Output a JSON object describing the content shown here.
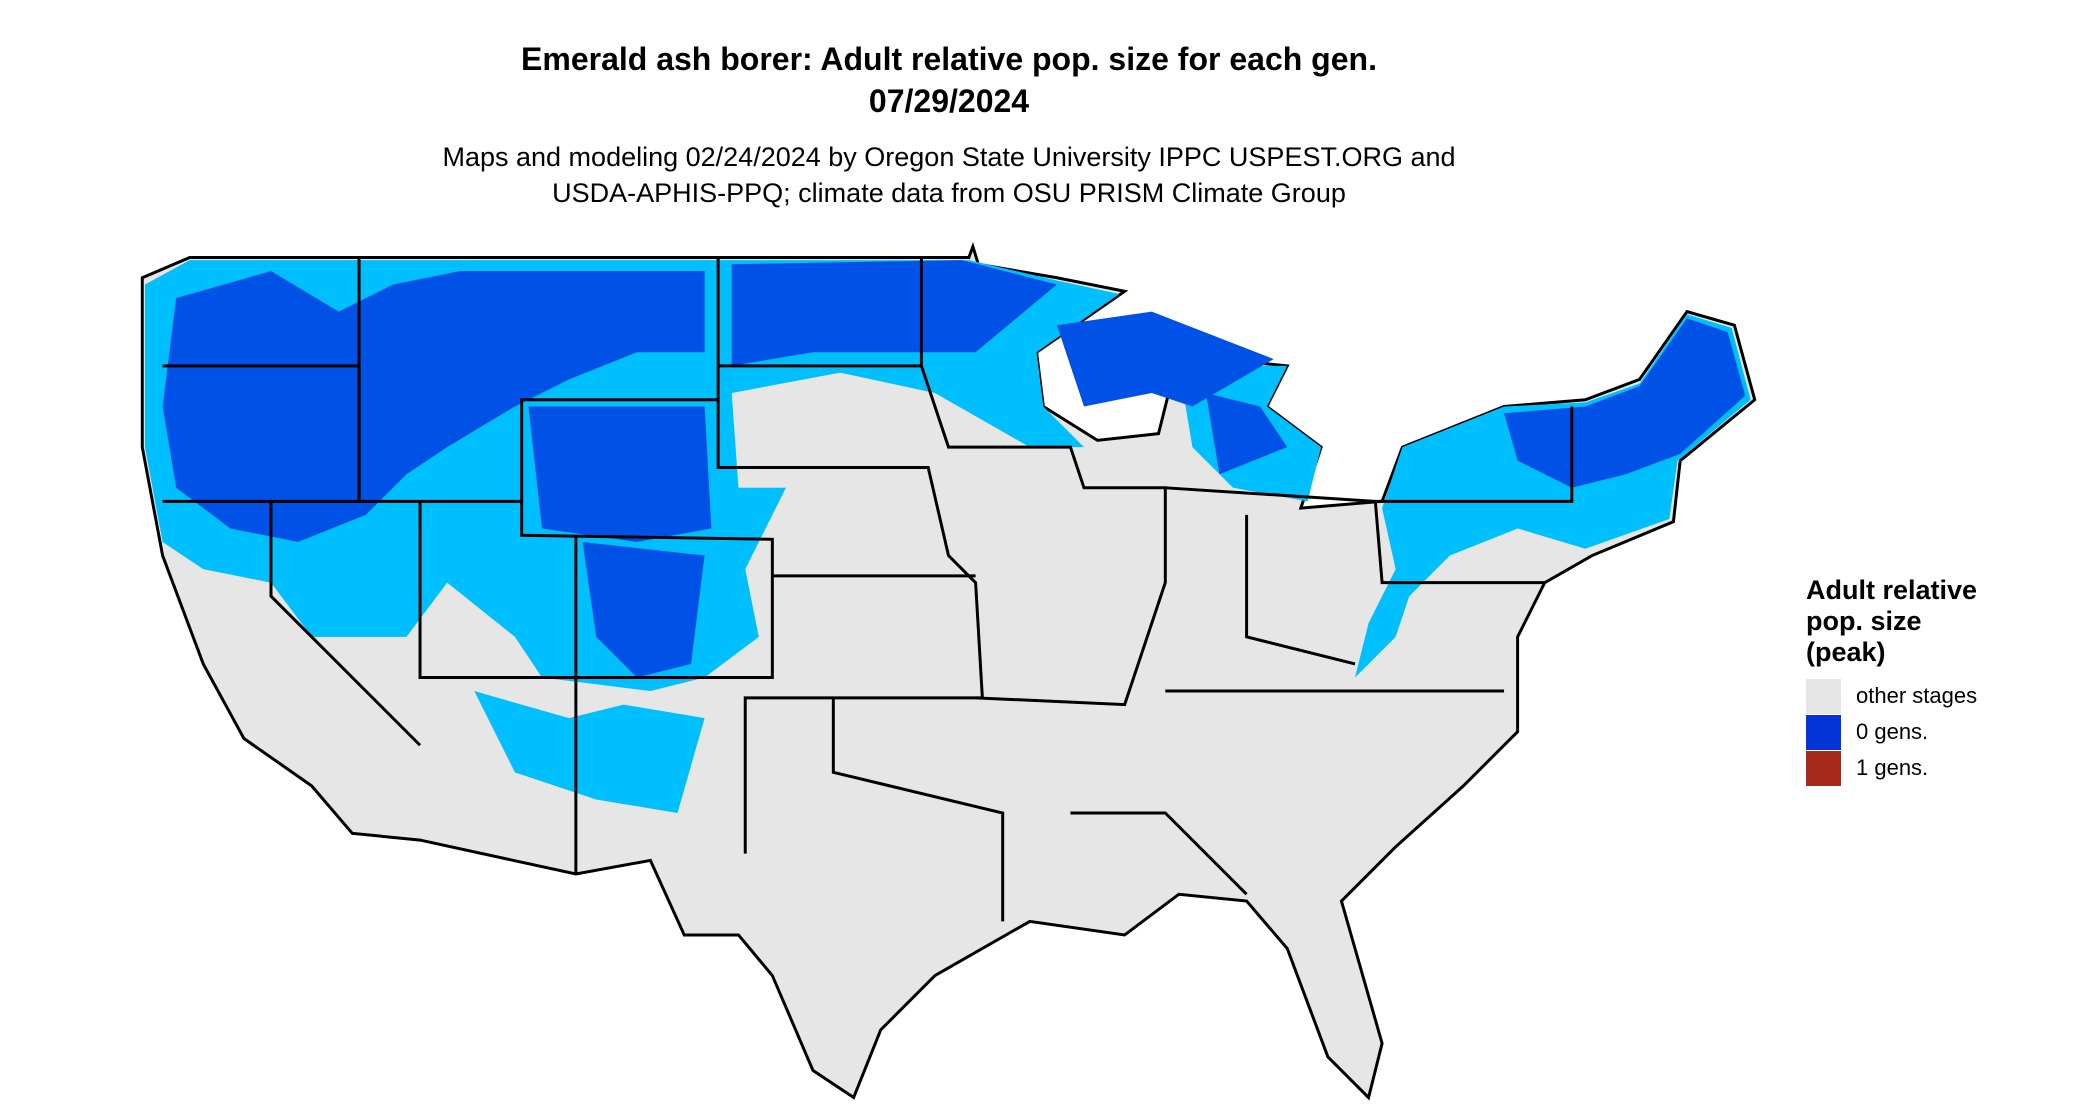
{
  "header": {
    "title": "Emerald ash borer: Adult relative pop. size for each gen.",
    "date": "07/29/2024",
    "subtitle": [
      "Maps and modeling 02/24/2024 by Oregon State University IPPC USPEST.ORG and",
      "USDA-APHIS-PPQ; climate data from OSU PRISM Climate Group"
    ]
  },
  "legend": {
    "title": [
      "Adult relative",
      "pop. size",
      "(peak)"
    ],
    "items": [
      {
        "label": "other stages",
        "color": "#e6e6e6"
      },
      {
        "label": "0 gens.",
        "color": "#0433d8"
      },
      {
        "label": "1 gens.",
        "color": "#a52a1a"
      }
    ]
  }
}
